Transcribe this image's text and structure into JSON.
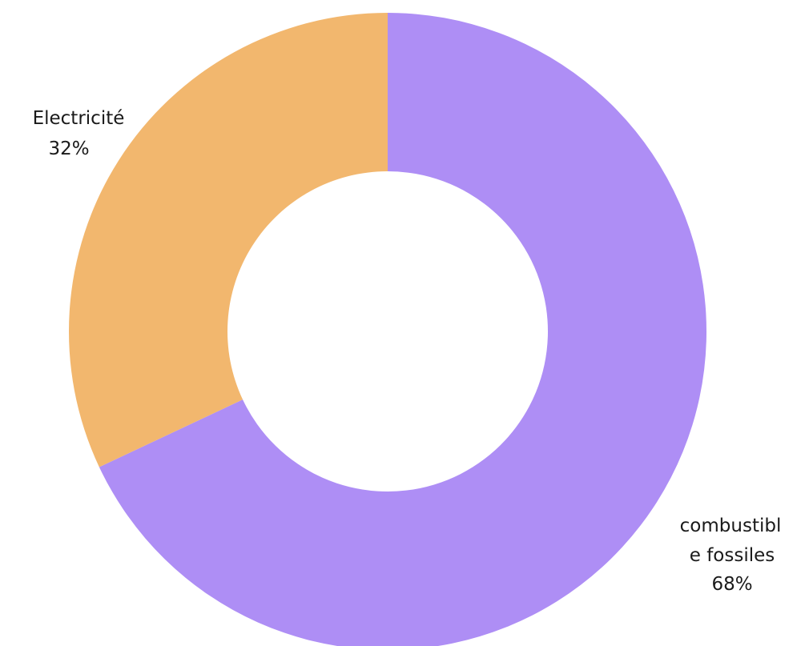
{
  "chart_data": {
    "type": "pie",
    "donut": true,
    "title": "",
    "slices": [
      {
        "label_lines": [
          "combustibl",
          "e fossiles"
        ],
        "value": 68,
        "percent_label": "68%",
        "color": "#ae8ef5"
      },
      {
        "label_lines": [
          "Electricité"
        ],
        "value": 32,
        "percent_label": "32%",
        "color": "#f2b76e"
      }
    ],
    "start_angle": "top",
    "direction": "clockwise",
    "legend": "none"
  }
}
